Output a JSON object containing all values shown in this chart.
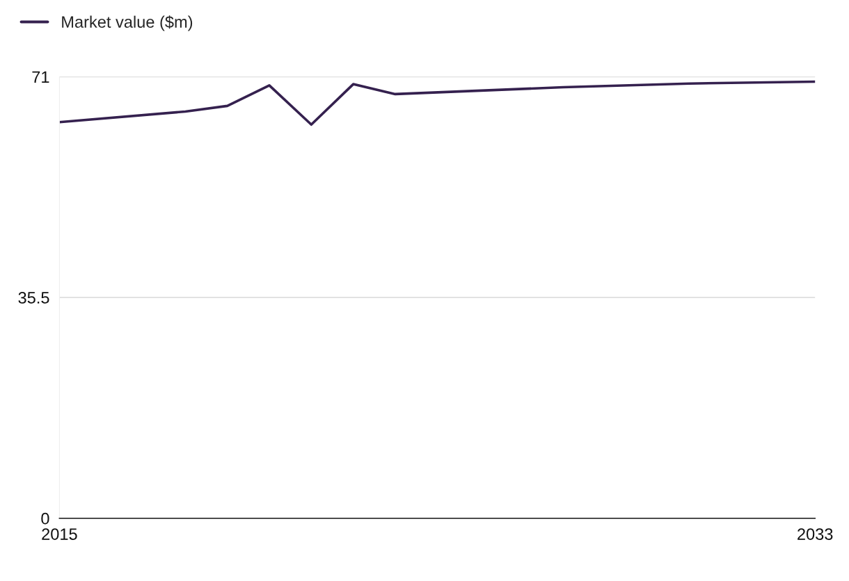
{
  "chart_data": {
    "type": "line",
    "x": [
      2015,
      2018,
      2019,
      2020,
      2021,
      2022,
      2023,
      2027,
      2030,
      2033
    ],
    "series": [
      {
        "name": "Market value ($m)",
        "color": "#35214f",
        "values": [
          63.7,
          65.4,
          66.3,
          69.6,
          63.3,
          69.8,
          68.2,
          69.3,
          69.9,
          70.2
        ]
      }
    ],
    "xlim": [
      2015,
      2033
    ],
    "xticks": [
      2015,
      2033
    ],
    "ylim": [
      0,
      71
    ],
    "yticks": [
      0,
      35.5,
      71
    ],
    "grid": "y",
    "legend": "top left",
    "marker": "none",
    "line_style": "solid"
  }
}
